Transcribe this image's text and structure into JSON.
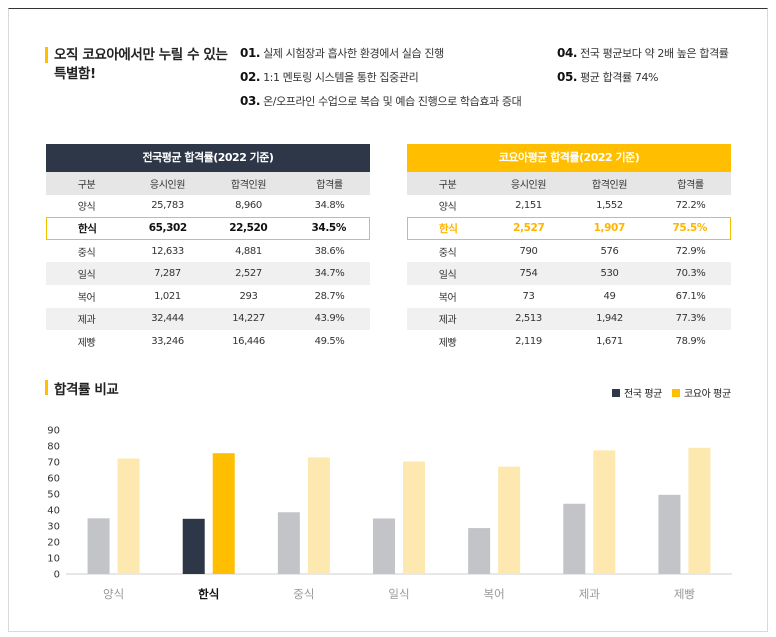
{
  "headline": {
    "text": "오직 코요아에서만 누릴 수 있는 특별함!"
  },
  "features": [
    {
      "num": "01.",
      "text": "실제 시험장과 흡사한 환경에서 실습 진행"
    },
    {
      "num": "02.",
      "text": "1:1 멘토링 시스템을 통한 집중관리"
    },
    {
      "num": "03.",
      "text": "온/오프라인 수업으로 복습 및 예습 진행으로 학습효과 증대"
    },
    {
      "num": "04.",
      "text": "전국 평균보다 약 2배 높은 합격률"
    },
    {
      "num": "05.",
      "text": "평균 합격률 74%"
    }
  ],
  "national_table": {
    "title": "전국평균 합격률(2022 기준)",
    "columns": [
      "구분",
      "응시인원",
      "합격인원",
      "합격률"
    ],
    "rows": [
      [
        "양식",
        "25,783",
        "8,960",
        "34.8%"
      ],
      [
        "한식",
        "65,302",
        "22,520",
        "34.5%"
      ],
      [
        "중식",
        "12,633",
        "4,881",
        "38.6%"
      ],
      [
        "일식",
        "7,287",
        "2,527",
        "34.7%"
      ],
      [
        "복어",
        "1,021",
        "293",
        "28.7%"
      ],
      [
        "제과",
        "32,444",
        "14,227",
        "43.9%"
      ],
      [
        "제빵",
        "33,246",
        "16,446",
        "49.5%"
      ]
    ],
    "highlight_index": 1
  },
  "koyoa_table": {
    "title": "코요아평균 합격률(2022 기준)",
    "columns": [
      "구분",
      "응시인원",
      "합격인원",
      "합격률"
    ],
    "rows": [
      [
        "양식",
        "2,151",
        "1,552",
        "72.2%"
      ],
      [
        "한식",
        "2,527",
        "1,907",
        "75.5%"
      ],
      [
        "중식",
        "790",
        "576",
        "72.9%"
      ],
      [
        "일식",
        "754",
        "530",
        "70.3%"
      ],
      [
        "복어",
        "73",
        "49",
        "67.1%"
      ],
      [
        "제과",
        "2,513",
        "1,942",
        "77.3%"
      ],
      [
        "제빵",
        "2,119",
        "1,671",
        "78.9%"
      ]
    ],
    "highlight_index": 1
  },
  "colors": {
    "dark": "#2d3748",
    "accent": "#ffbf00",
    "gray_bar": "#c2c4c8",
    "light_yellow_bar": "#fde9b0",
    "alt_row": "#f0f0f0"
  },
  "chart_data": {
    "type": "bar",
    "title": "합격률 비교",
    "categories": [
      "양식",
      "한식",
      "중식",
      "일식",
      "복어",
      "제과",
      "제빵"
    ],
    "series": [
      {
        "name": "전국 평균",
        "values": [
          34.8,
          34.5,
          38.6,
          34.7,
          28.7,
          43.9,
          49.5
        ]
      },
      {
        "name": "코요아 평균",
        "values": [
          72.2,
          75.5,
          72.9,
          70.3,
          67.1,
          77.3,
          78.9
        ]
      }
    ],
    "highlight_category": "한식",
    "yticks": [
      0,
      10,
      20,
      30,
      40,
      50,
      60,
      70,
      80,
      90
    ],
    "ylim": [
      0,
      90
    ],
    "legend_position": "top-right",
    "grid": false
  }
}
